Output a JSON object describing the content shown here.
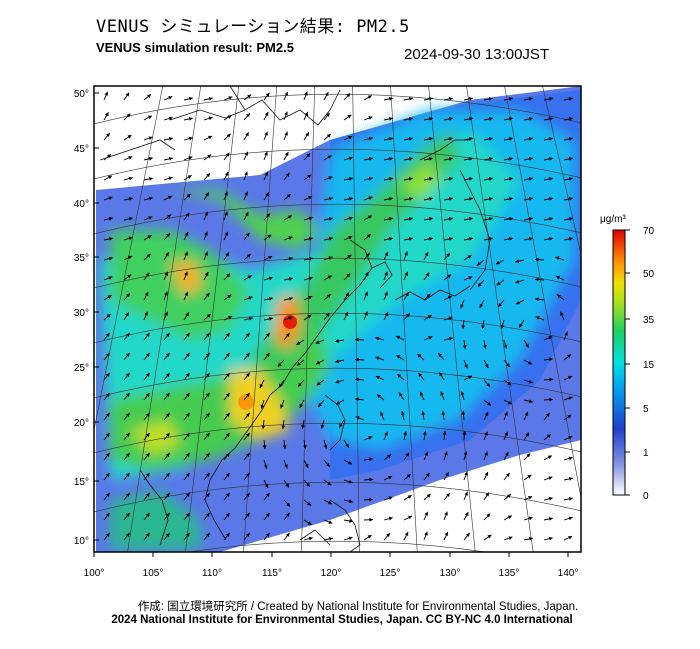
{
  "header": {
    "title_jp": "VENUS シミュレーション結果: PM2.5",
    "title_en": "VENUS simulation result: PM2.5",
    "timestamp": "2024-09-30 13:00JST"
  },
  "map": {
    "lat_labels": [
      "50°",
      "45°",
      "40°",
      "35°",
      "30°",
      "25°",
      "20°",
      "15°",
      "10°"
    ],
    "lon_labels": [
      "100°",
      "105°",
      "110°",
      "115°",
      "120°",
      "125°",
      "130°",
      "135°",
      "140°"
    ],
    "layers": [
      "pm2.5-concentration",
      "wind-vectors",
      "coastlines",
      "graticule"
    ]
  },
  "colorbar": {
    "unit": "μg/m³",
    "tick_labels": [
      "70",
      "50",
      "35",
      "15",
      "5",
      "1",
      "0"
    ],
    "colors": [
      "#ffffff",
      "#3050e0",
      "#00c8ff",
      "#20e060",
      "#f0e000",
      "#ff8000",
      "#e00000"
    ]
  },
  "footer": {
    "credit_line1": "作成: 国立環境研究所 / Created by National Institute for Environmental Studies, Japan.",
    "credit_line2": "2024 National Institute for Environmental Studies, Japan. CC BY-NC 4.0 International"
  }
}
